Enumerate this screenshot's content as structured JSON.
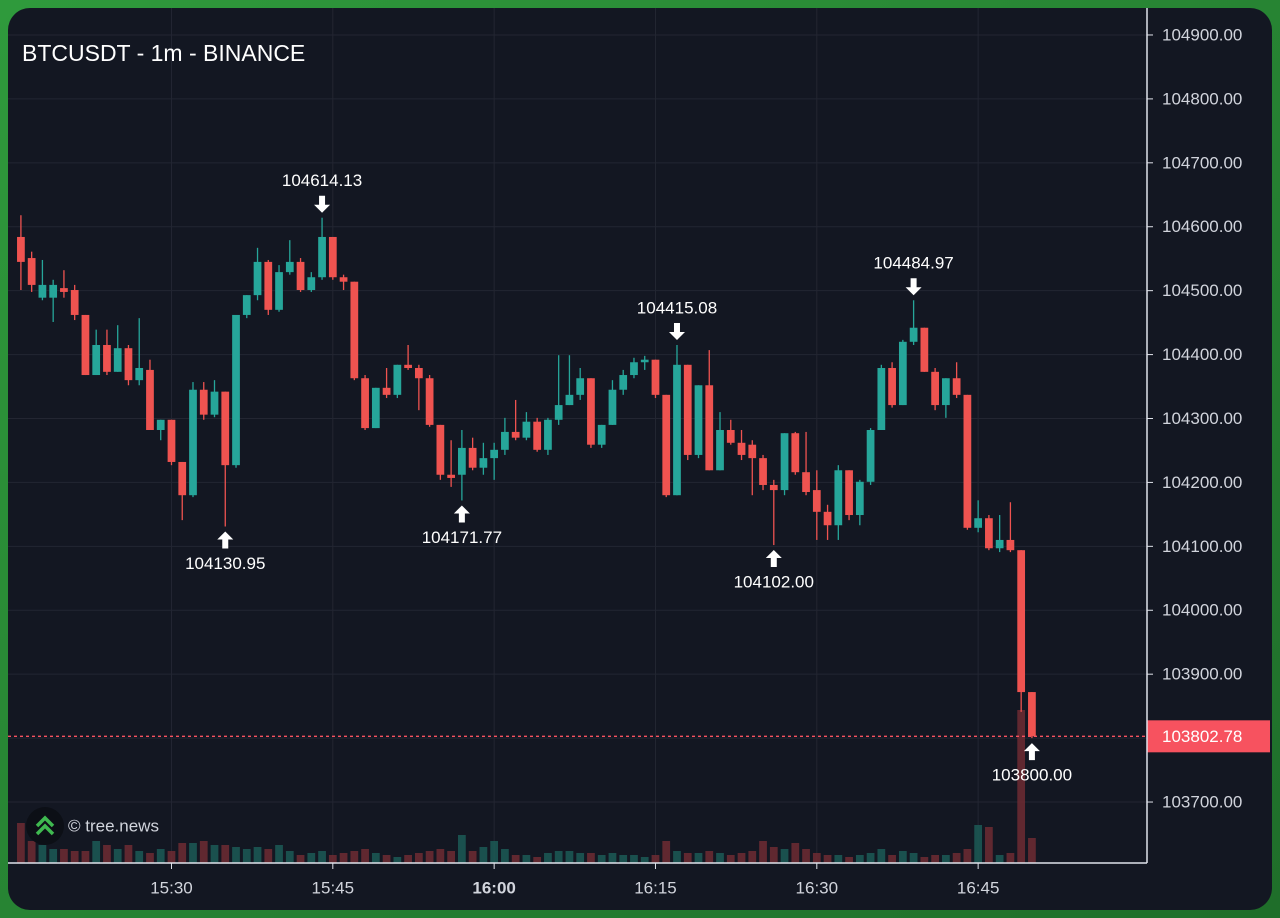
{
  "chart_data": {
    "type": "candlestick",
    "title": "BTCUSDT - 1m - BINANCE",
    "watermark": "© tree.news",
    "up_color": "#26a69a",
    "down_color": "#ef5350",
    "up_volume_color": "#1c5a56",
    "down_volume_color": "#6e2c33",
    "grid": true,
    "xlim": [
      914.8,
      1020.7
    ],
    "xticks": [
      {
        "value": 930,
        "label": "15:30"
      },
      {
        "value": 945,
        "label": "15:45"
      },
      {
        "value": 960,
        "label": "16:00",
        "bold": true
      },
      {
        "value": 975,
        "label": "16:15"
      },
      {
        "value": 990,
        "label": "16:30"
      },
      {
        "value": 1005,
        "label": "16:45"
      }
    ],
    "ylim": [
      103604.6,
      104942.2
    ],
    "yticks": [
      {
        "value": 103700,
        "label": "103700.00"
      },
      {
        "value": 103800,
        "label": "103800.00"
      },
      {
        "value": 103900,
        "label": "103900.00"
      },
      {
        "value": 104000,
        "label": "104000.00"
      },
      {
        "value": 104100,
        "label": "104100.00"
      },
      {
        "value": 104200,
        "label": "104200.00"
      },
      {
        "value": 104300,
        "label": "104300.00"
      },
      {
        "value": 104400,
        "label": "104400.00"
      },
      {
        "value": 104500,
        "label": "104500.00"
      },
      {
        "value": 104600,
        "label": "104600.00"
      },
      {
        "value": 104700,
        "label": "104700.00"
      },
      {
        "value": 104800,
        "label": "104800.00"
      },
      {
        "value": 104900,
        "label": "104900.00"
      }
    ],
    "vlim": [
      0,
      160
    ],
    "x": [
      916,
      917,
      918,
      919,
      920,
      921,
      922,
      923,
      924,
      925,
      926,
      927,
      928,
      929,
      930,
      931,
      932,
      933,
      934,
      935,
      936,
      937,
      938,
      939,
      940,
      941,
      942,
      943,
      944,
      945,
      946,
      947,
      948,
      949,
      950,
      951,
      952,
      953,
      954,
      955,
      956,
      957,
      958,
      959,
      960,
      961,
      962,
      963,
      964,
      965,
      966,
      967,
      968,
      969,
      970,
      971,
      972,
      973,
      974,
      975,
      976,
      977,
      978,
      979,
      980,
      981,
      982,
      983,
      984,
      985,
      986,
      987,
      988,
      989,
      990,
      991,
      992,
      993,
      994,
      995,
      996,
      997,
      998,
      999,
      1000,
      1001,
      1002,
      1003,
      1004,
      1005,
      1006,
      1007,
      1008,
      1009,
      1010
    ],
    "open": [
      104584,
      104551,
      104489,
      104489,
      104504,
      104501,
      104462,
      104368,
      104415,
      104373,
      104410,
      104360,
      104376,
      104282,
      104298,
      104232,
      104180,
      104345,
      104306,
      104342,
      104227,
      104462,
      104493,
      104545,
      104470,
      104529,
      104545,
      104501,
      104521,
      104584,
      104521,
      104514,
      104363,
      104285,
      104348,
      104337,
      104384,
      104379,
      104363,
      104290,
      104212,
      104212,
      104254,
      104223,
      104238,
      104251,
      104279,
      104270,
      104295,
      104251,
      104298,
      104321,
      104337,
      104363,
      104259,
      104290,
      104345,
      104368,
      104388,
      104392,
      104337,
      104180,
      104384,
      104243,
      104352,
      104219,
      104282,
      104262,
      104259,
      104238,
      104196,
      104188,
      104277,
      104216,
      104188,
      104154,
      104133,
      104219,
      104149,
      104201,
      104282,
      104379,
      104321,
      104420,
      104442,
      104373,
      104321,
      104363,
      104337,
      104129,
      104144,
      104097,
      104110,
      104094,
      103872
    ],
    "high": [
      104618,
      104561,
      104548,
      104517,
      104532,
      104509,
      104462,
      104439,
      104439,
      104446,
      104415,
      104457,
      104392,
      104298,
      104298,
      104232,
      104357,
      104357,
      104360,
      104342,
      104462,
      104493,
      104567,
      104548,
      104540,
      104579,
      104551,
      104529,
      104614.13,
      104584,
      104525,
      104514,
      104368,
      104348,
      104379,
      104384,
      104415,
      104384,
      104368,
      104290,
      104266,
      104282,
      104270,
      104262,
      104262,
      104301,
      104329,
      104310,
      104301,
      104301,
      104399,
      104399,
      104379,
      104363,
      104290,
      104360,
      104376,
      104395,
      104398,
      104392,
      104337,
      104415.08,
      104384,
      104352,
      104407,
      104310,
      104298,
      104282,
      104266,
      104243,
      104204,
      104277,
      104279,
      104279,
      104219,
      104165,
      104227,
      104219,
      104204,
      104285,
      104384,
      104388,
      104423,
      104484.97,
      104442,
      104379,
      104363,
      104388,
      104337,
      104172,
      104149,
      104149,
      104169,
      104094,
      103872
    ],
    "low": [
      104501,
      104498,
      104485,
      104451,
      104489,
      104454,
      104368,
      104368,
      104368,
      104373,
      104352,
      104352,
      104282,
      104266,
      104227,
      104141,
      104177,
      104298,
      104302,
      104130.95,
      104223,
      104457,
      104485,
      104462,
      104467,
      104525,
      104498,
      104498,
      104517,
      104517,
      104501,
      104360,
      104282,
      104285,
      104332,
      104332,
      104376,
      104313,
      104287,
      104204,
      104193,
      104171.77,
      104219,
      104212,
      104204,
      104243,
      104266,
      104266,
      104248,
      104243,
      104290,
      104321,
      104329,
      104254,
      104254,
      104290,
      104337,
      104363,
      104376,
      104332,
      104177,
      104180,
      104235,
      104238,
      104219,
      104219,
      104259,
      104235,
      104180,
      104188,
      104102,
      104180,
      104212,
      104180,
      104110,
      104110,
      104110,
      104141,
      104133,
      104196,
      104282,
      104317,
      104321,
      104415,
      104373,
      104313,
      104301,
      104332,
      104126,
      104122,
      104094,
      104091,
      104091,
      103841,
      103800
    ],
    "close": [
      104545,
      104509,
      104509,
      104509,
      104498,
      104462,
      104368,
      104415,
      104373,
      104410,
      104360,
      104379,
      104282,
      104298,
      104232,
      104180,
      104345,
      104306,
      104342,
      104227,
      104462,
      104493,
      104545,
      104470,
      104529,
      104545,
      104501,
      104521,
      104584,
      104521,
      104514,
      104363,
      104285,
      104348,
      104337,
      104384,
      104379,
      104363,
      104290,
      104212,
      104207,
      104254,
      104223,
      104238,
      104251,
      104279,
      104270,
      104295,
      104251,
      104298,
      104321,
      104337,
      104363,
      104259,
      104290,
      104345,
      104368,
      104388,
      104392,
      104337,
      104180,
      104384,
      104243,
      104352,
      104219,
      104282,
      104262,
      104243,
      104238,
      104196,
      104188,
      104277,
      104216,
      104185,
      104154,
      104133,
      104219,
      104149,
      104201,
      104282,
      104379,
      104321,
      104420,
      104442,
      104373,
      104321,
      104363,
      104337,
      104129,
      104144,
      104097,
      104110,
      104094,
      103872,
      103802.78
    ],
    "volume": [
      40,
      22,
      18,
      14,
      14,
      12,
      12,
      22,
      18,
      14,
      18,
      12,
      10,
      14,
      12,
      20,
      20,
      22,
      18,
      18,
      16,
      14,
      16,
      14,
      18,
      12,
      8,
      10,
      12,
      8,
      10,
      12,
      14,
      10,
      8,
      6,
      8,
      10,
      12,
      14,
      12,
      28,
      12,
      16,
      22,
      14,
      8,
      8,
      6,
      10,
      12,
      12,
      10,
      10,
      8,
      10,
      8,
      8,
      6,
      8,
      22,
      12,
      10,
      10,
      12,
      10,
      8,
      10,
      12,
      22,
      16,
      14,
      20,
      14,
      10,
      8,
      8,
      6,
      8,
      10,
      14,
      8,
      12,
      10,
      6,
      8,
      8,
      10,
      14,
      38,
      36,
      8,
      10,
      153,
      25
    ],
    "annotations": [
      {
        "label": "104614.13",
        "x": 944,
        "y": 104614.13,
        "direction": "down"
      },
      {
        "label": "104130.95",
        "x": 935,
        "y": 104130.95,
        "direction": "up"
      },
      {
        "label": "104171.77",
        "x": 957,
        "y": 104171.77,
        "direction": "up"
      },
      {
        "label": "104415.08",
        "x": 977,
        "y": 104415.08,
        "direction": "down"
      },
      {
        "label": "104102.00",
        "x": 986,
        "y": 104102.0,
        "direction": "up"
      },
      {
        "label": "104484.97",
        "x": 999,
        "y": 104484.97,
        "direction": "down"
      },
      {
        "label": "103800.00",
        "x": 1010,
        "y": 103800.0,
        "direction": "up"
      }
    ],
    "last_price": {
      "value": 103802.78,
      "label": "103802.78",
      "color": "#f7525f"
    }
  }
}
